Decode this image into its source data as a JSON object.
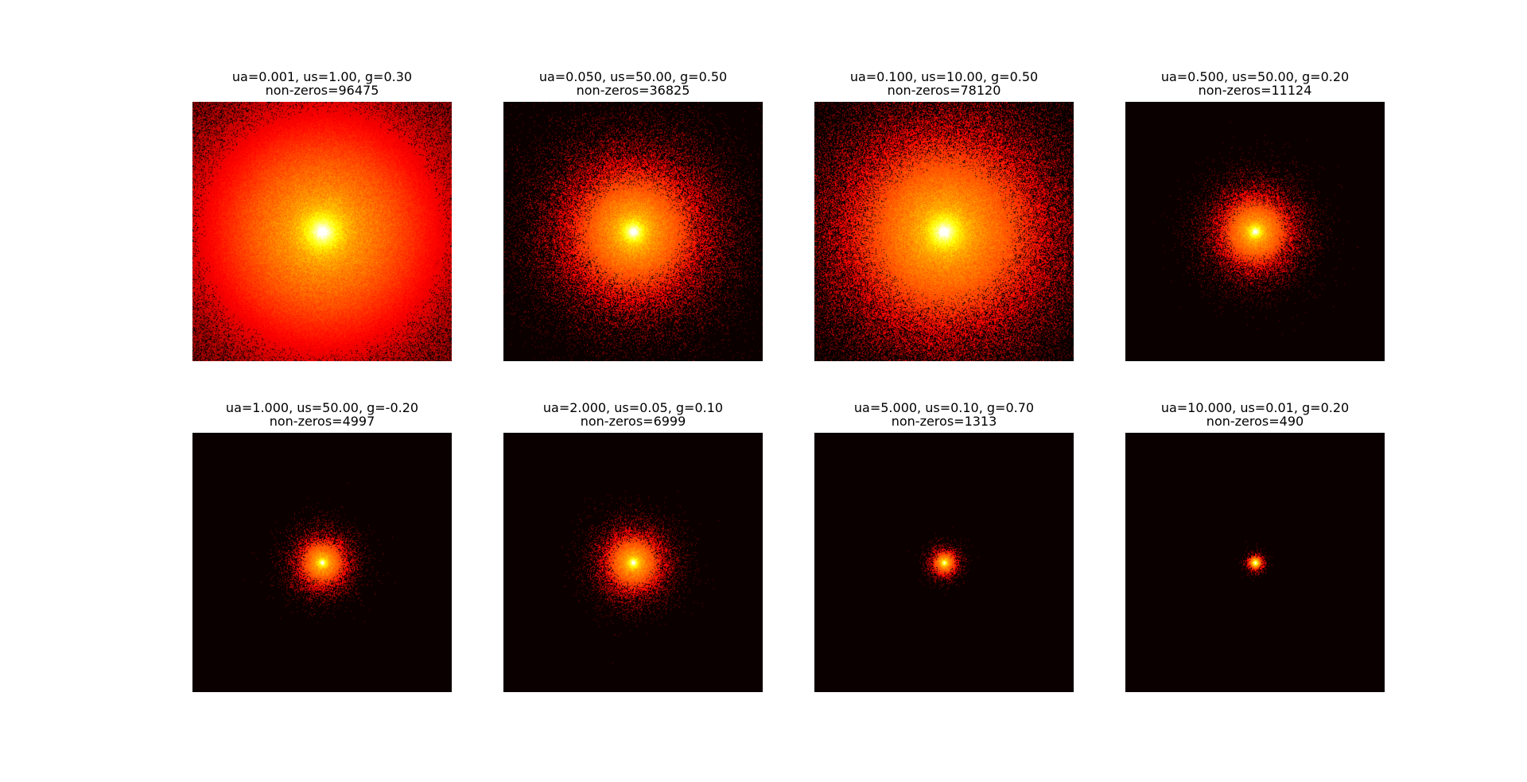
{
  "chart_data": [
    {
      "type": "heatmap",
      "title_line1": "ua=0.001, us=1.00, g=0.30",
      "title_line2": "non-zeros=96475",
      "ua": 0.001,
      "us": 1.0,
      "g": 0.3,
      "non_zeros": 96475,
      "colormap": "hot"
    },
    {
      "type": "heatmap",
      "title_line1": "ua=0.050, us=50.00, g=0.50",
      "title_line2": "non-zeros=36825",
      "ua": 0.05,
      "us": 50.0,
      "g": 0.5,
      "non_zeros": 36825,
      "colormap": "hot"
    },
    {
      "type": "heatmap",
      "title_line1": "ua=0.100, us=10.00, g=0.50",
      "title_line2": "non-zeros=78120",
      "ua": 0.1,
      "us": 10.0,
      "g": 0.5,
      "non_zeros": 78120,
      "colormap": "hot"
    },
    {
      "type": "heatmap",
      "title_line1": "ua=0.500, us=50.00, g=0.20",
      "title_line2": "non-zeros=11124",
      "ua": 0.5,
      "us": 50.0,
      "g": 0.2,
      "non_zeros": 11124,
      "colormap": "hot"
    },
    {
      "type": "heatmap",
      "title_line1": "ua=1.000, us=50.00, g=-0.20",
      "title_line2": "non-zeros=4997",
      "ua": 1.0,
      "us": 50.0,
      "g": -0.2,
      "non_zeros": 4997,
      "colormap": "hot"
    },
    {
      "type": "heatmap",
      "title_line1": "ua=2.000, us=0.05, g=0.10",
      "title_line2": "non-zeros=6999",
      "ua": 2.0,
      "us": 0.05,
      "g": 0.1,
      "non_zeros": 6999,
      "colormap": "hot"
    },
    {
      "type": "heatmap",
      "title_line1": "ua=5.000, us=0.10, g=0.70",
      "title_line2": "non-zeros=1313",
      "ua": 5.0,
      "us": 0.1,
      "g": 0.7,
      "non_zeros": 1313,
      "colormap": "hot"
    },
    {
      "type": "heatmap",
      "title_line1": "ua=10.000, us=0.01, g=0.20",
      "title_line2": "non-zeros=490",
      "ua": 10.0,
      "us": 0.01,
      "g": 0.2,
      "non_zeros": 490,
      "colormap": "hot"
    }
  ]
}
